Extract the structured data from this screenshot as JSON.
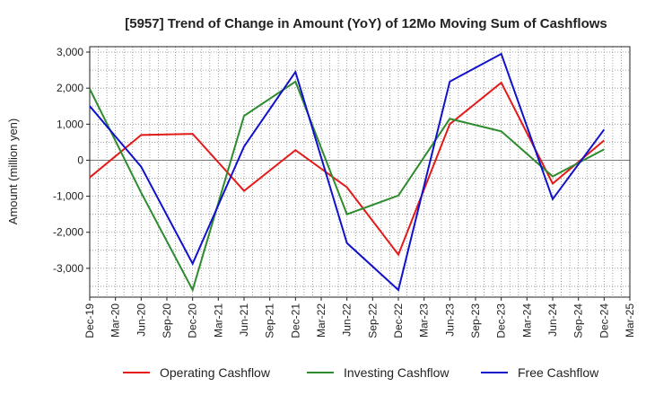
{
  "chart_data": {
    "type": "line",
    "title": "[5957]  Trend of Change in Amount (YoY) of 12Mo Moving Sum of Cashflows",
    "xlabel": "",
    "ylabel": "Amount (million yen)",
    "ylim": [
      -3800,
      3150
    ],
    "yticks": [
      3000,
      2000,
      1000,
      0,
      -1000,
      -2000,
      -3000
    ],
    "ytick_labels": [
      "3,000",
      "2,000",
      "1,000",
      "0",
      "-1,000",
      "-2,000",
      "-3,000"
    ],
    "categories": [
      "Dec-19",
      "Mar-20",
      "Jun-20",
      "Sep-20",
      "Dec-20",
      "Mar-21",
      "Jun-21",
      "Sep-21",
      "Dec-21",
      "Mar-22",
      "Jun-22",
      "Sep-22",
      "Dec-22",
      "Mar-23",
      "Jun-23",
      "Sep-23",
      "Dec-23",
      "Mar-24",
      "Jun-24",
      "Sep-24",
      "Dec-24",
      "Mar-25"
    ],
    "legend_position": "bottom",
    "grid": true,
    "series": [
      {
        "name": "Operating Cashflow",
        "color": "#e41a1a",
        "values": [
          -480,
          null,
          700,
          null,
          730,
          null,
          -850,
          null,
          280,
          null,
          -750,
          null,
          -2620,
          null,
          1000,
          null,
          2150,
          null,
          -650,
          null,
          550,
          null
        ]
      },
      {
        "name": "Investing Cashflow",
        "color": "#2e8b2e",
        "values": [
          1980,
          null,
          -900,
          null,
          -3600,
          null,
          1230,
          null,
          2180,
          null,
          -1500,
          null,
          -980,
          null,
          1150,
          null,
          800,
          null,
          -450,
          null,
          300,
          null
        ]
      },
      {
        "name": "Free Cashflow",
        "color": "#1111cc",
        "values": [
          1500,
          null,
          -180,
          null,
          -2870,
          null,
          380,
          null,
          2450,
          null,
          -2300,
          null,
          -3600,
          null,
          2180,
          null,
          2950,
          null,
          -1080,
          null,
          850,
          null
        ]
      }
    ]
  }
}
